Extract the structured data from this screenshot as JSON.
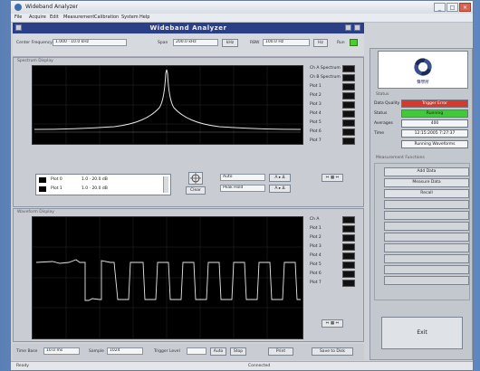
{
  "window": {
    "title": "Wideband Analyzer",
    "minimize_label": "_",
    "maximize_label": "□",
    "close_label": "×"
  },
  "menu": {
    "items": [
      "File",
      "Acquire",
      "Edit",
      "Measurement",
      "Calibration",
      "System",
      "Help"
    ]
  },
  "header": {
    "title": "Wideband Analyzer"
  },
  "controls": {
    "freq_label": "Center Frequency",
    "freq_value": "1.000 · 10.0 kHz",
    "span_label": "Span",
    "span_value": "200.0 kHz",
    "span_unit": "kHz",
    "rbw_label": "RBW",
    "rbw_value": "100.0 Hz",
    "rbw_unit": "Hz",
    "run_label": "Run"
  },
  "spectrum_panel": {
    "title": "Spectrum Display",
    "legend": [
      {
        "label": "Ch A Spectrum",
        "color": "#ffffff"
      },
      {
        "label": "Ch B Spectrum",
        "color": "#dddddd"
      },
      {
        "label": "Plot 1",
        "color": "#f0d000"
      },
      {
        "label": "Plot 2",
        "color": "#c8c8c8"
      },
      {
        "label": "Plot 3",
        "color": "#e8e8e8"
      },
      {
        "label": "Plot 4",
        "color": "#ff8c00"
      },
      {
        "label": "Plot 5",
        "color": "#cccccc"
      },
      {
        "label": "Plot 6",
        "color": "#eeeeee"
      },
      {
        "label": "Plot 7",
        "color": "#bbbbbb"
      }
    ],
    "cursor_rows": [
      {
        "name": "Plot 0",
        "value": "1.0 · 20.0 dB"
      },
      {
        "name": "Plot 1",
        "value": "1.0 · 20.0 dB"
      }
    ],
    "clear_label": "Clear",
    "mode_value": "Auto",
    "mode2_value": "Peak Hold",
    "btn_a": "A ▸ Δ",
    "btn_b": "A ▸ Δ",
    "arrow_label": "⇔ ▦ ⇔"
  },
  "waveform_panel": {
    "title": "Waveform Display",
    "legend": [
      {
        "label": "Ch A",
        "color": "#e8e8e8"
      },
      {
        "label": "Plot 1",
        "color": "#f0d000"
      },
      {
        "label": "Plot 2",
        "color": "#c8c8c8"
      },
      {
        "label": "Plot 3",
        "color": "#e8e8e8"
      },
      {
        "label": "Plot 4",
        "color": "#ff8c00"
      },
      {
        "label": "Plot 5",
        "color": "#cccccc"
      },
      {
        "label": "Plot 6",
        "color": "#eeeeee"
      },
      {
        "label": "Plot 7",
        "color": "#bbbbbb"
      }
    ],
    "arrow_label": "⇔ ▦ ⇔"
  },
  "bottom_controls": {
    "label1": "Time Base",
    "value1": "10.0 ms",
    "label2": "Sample",
    "value2": "1024",
    "label3": "Trigger Level",
    "btn_auto": "Auto",
    "btn_stop": "Stop",
    "btn_print": "Print",
    "btn_save": "Save to Disk"
  },
  "right_panel": {
    "logo_caption": "聲學所",
    "status_title": "Status",
    "status": [
      {
        "label": "Data Quality",
        "value": "Trigger Error",
        "color": "#d63a2c"
      },
      {
        "label": "Status",
        "value": "Running",
        "color": "#42c93a"
      },
      {
        "label": "Averages",
        "value": "400",
        "color": "#f4f5f7"
      },
      {
        "label": "Time",
        "value": "12:15:2005 7:27:37",
        "color": "#f4f5f7"
      }
    ],
    "mode_select": "Running Waveforms",
    "actions_title": "Measurement Functions",
    "actions": [
      "Add Data",
      "Measure Data",
      "Recall"
    ],
    "exit_label": "Exit"
  },
  "statusbar": {
    "left": "Ready",
    "mid": "Connected"
  },
  "colors": {
    "accent": "#2b3f86",
    "trace": "#e6e6e6",
    "error": "#d63a2c",
    "ok": "#42c93a"
  }
}
